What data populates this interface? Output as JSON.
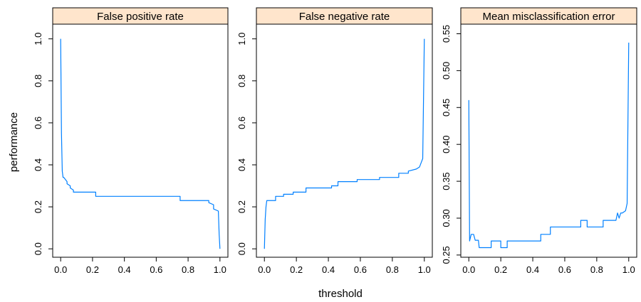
{
  "chart_data": {
    "type": "line",
    "xlabel": "threshold",
    "ylabel": "performance",
    "line_color": "#0080ff",
    "strip_color": "#ffe5cc",
    "panels": [
      {
        "title": "False positive rate",
        "xlim": [
          -0.05,
          1.05
        ],
        "ylim": [
          -0.04,
          1.07
        ],
        "x_ticks": [
          0.0,
          0.2,
          0.4,
          0.6,
          0.8,
          1.0
        ],
        "x_tick_labels": [
          "0.0",
          "0.2",
          "0.4",
          "0.6",
          "0.8",
          "1.0"
        ],
        "y_ticks": [
          0.0,
          0.2,
          0.4,
          0.6,
          0.8,
          1.0
        ],
        "y_tick_labels": [
          "0.0",
          "0.2",
          "0.4",
          "0.6",
          "0.8",
          "1.0"
        ],
        "x": [
          0.0,
          0.005,
          0.01,
          0.015,
          0.02,
          0.04,
          0.04,
          0.06,
          0.06,
          0.08,
          0.08,
          0.22,
          0.22,
          0.75,
          0.75,
          0.93,
          0.93,
          0.96,
          0.96,
          0.99,
          0.995,
          1.0
        ],
        "y": [
          1.0,
          0.55,
          0.37,
          0.34,
          0.34,
          0.32,
          0.31,
          0.3,
          0.29,
          0.28,
          0.27,
          0.27,
          0.25,
          0.25,
          0.23,
          0.23,
          0.22,
          0.21,
          0.19,
          0.18,
          0.07,
          0.0
        ]
      },
      {
        "title": "False negative rate",
        "xlim": [
          -0.05,
          1.05
        ],
        "ylim": [
          -0.04,
          1.07
        ],
        "x_ticks": [
          0.0,
          0.2,
          0.4,
          0.6,
          0.8,
          1.0
        ],
        "x_tick_labels": [
          "0.0",
          "0.2",
          "0.4",
          "0.6",
          "0.8",
          "1.0"
        ],
        "y_ticks": [
          0.0,
          0.2,
          0.4,
          0.6,
          0.8,
          1.0
        ],
        "y_tick_labels": [
          "0.0",
          "0.2",
          "0.4",
          "0.6",
          "0.8",
          "1.0"
        ],
        "x": [
          0.0,
          0.005,
          0.01,
          0.015,
          0.03,
          0.05,
          0.07,
          0.07,
          0.12,
          0.12,
          0.18,
          0.18,
          0.26,
          0.26,
          0.42,
          0.42,
          0.46,
          0.46,
          0.58,
          0.58,
          0.72,
          0.72,
          0.84,
          0.84,
          0.9,
          0.9,
          0.95,
          0.97,
          0.98,
          0.99,
          1.0
        ],
        "y": [
          0.0,
          0.14,
          0.2,
          0.23,
          0.23,
          0.23,
          0.23,
          0.25,
          0.25,
          0.26,
          0.26,
          0.27,
          0.27,
          0.29,
          0.29,
          0.3,
          0.3,
          0.32,
          0.32,
          0.33,
          0.33,
          0.34,
          0.34,
          0.36,
          0.36,
          0.37,
          0.38,
          0.39,
          0.41,
          0.43,
          1.0
        ]
      },
      {
        "title": "Mean misclassification error",
        "xlim": [
          -0.05,
          1.05
        ],
        "ylim": [
          0.247,
          0.563
        ],
        "x_ticks": [
          0.0,
          0.2,
          0.4,
          0.6,
          0.8,
          1.0
        ],
        "x_tick_labels": [
          "0.0",
          "0.2",
          "0.4",
          "0.6",
          "0.8",
          "1.0"
        ],
        "y_ticks": [
          0.25,
          0.3,
          0.35,
          0.4,
          0.45,
          0.5,
          0.55
        ],
        "y_tick_labels": [
          "0.25",
          "0.30",
          "0.35",
          "0.40",
          "0.45",
          "0.50",
          "0.55"
        ],
        "x": [
          0.0,
          0.005,
          0.015,
          0.025,
          0.03,
          0.04,
          0.045,
          0.06,
          0.065,
          0.14,
          0.14,
          0.2,
          0.2,
          0.24,
          0.24,
          0.29,
          0.29,
          0.45,
          0.45,
          0.51,
          0.51,
          0.7,
          0.7,
          0.74,
          0.74,
          0.84,
          0.84,
          0.92,
          0.93,
          0.94,
          0.95,
          0.96,
          0.98,
          0.99,
          1.0
        ],
        "y": [
          0.46,
          0.269,
          0.278,
          0.278,
          0.278,
          0.27,
          0.27,
          0.27,
          0.26,
          0.26,
          0.269,
          0.269,
          0.26,
          0.26,
          0.269,
          0.269,
          0.269,
          0.269,
          0.278,
          0.278,
          0.288,
          0.288,
          0.297,
          0.297,
          0.288,
          0.288,
          0.297,
          0.297,
          0.307,
          0.3,
          0.307,
          0.307,
          0.31,
          0.32,
          0.538
        ]
      }
    ]
  }
}
